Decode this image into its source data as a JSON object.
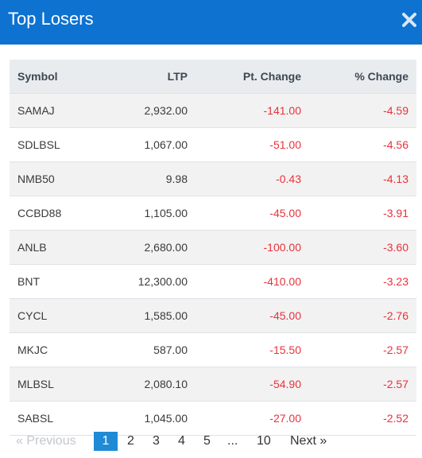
{
  "modal": {
    "title": "Top Losers",
    "close_icon": "close-icon"
  },
  "table": {
    "columns": [
      "Symbol",
      "LTP",
      "Pt. Change",
      "% Change"
    ],
    "rows": [
      {
        "symbol": "SAMAJ",
        "ltp": "2,932.00",
        "pt_change": "-141.00",
        "pct_change": "-4.59"
      },
      {
        "symbol": "SDLBSL",
        "ltp": "1,067.00",
        "pt_change": "-51.00",
        "pct_change": "-4.56"
      },
      {
        "symbol": "NMB50",
        "ltp": "9.98",
        "pt_change": "-0.43",
        "pct_change": "-4.13"
      },
      {
        "symbol": "CCBD88",
        "ltp": "1,105.00",
        "pt_change": "-45.00",
        "pct_change": "-3.91"
      },
      {
        "symbol": "ANLB",
        "ltp": "2,680.00",
        "pt_change": "-100.00",
        "pct_change": "-3.60"
      },
      {
        "symbol": "BNT",
        "ltp": "12,300.00",
        "pt_change": "-410.00",
        "pct_change": "-3.23"
      },
      {
        "symbol": "CYCL",
        "ltp": "1,585.00",
        "pt_change": "-45.00",
        "pct_change": "-2.76"
      },
      {
        "symbol": "MKJC",
        "ltp": "587.00",
        "pt_change": "-15.50",
        "pct_change": "-2.57"
      },
      {
        "symbol": "MLBSL",
        "ltp": "2,080.10",
        "pt_change": "-54.90",
        "pct_change": "-2.57"
      },
      {
        "symbol": "SABSL",
        "ltp": "1,045.00",
        "pt_change": "-27.00",
        "pct_change": "-2.52"
      }
    ]
  },
  "pagination": {
    "previous": "« Previous",
    "pages": [
      "1",
      "2",
      "3",
      "4",
      "5",
      "...",
      "10"
    ],
    "active_page": "1",
    "next": "Next »"
  },
  "colors": {
    "header_bg": "#0e72d1",
    "negative": "#e8323c",
    "active_page_bg": "#1f8ad6"
  }
}
